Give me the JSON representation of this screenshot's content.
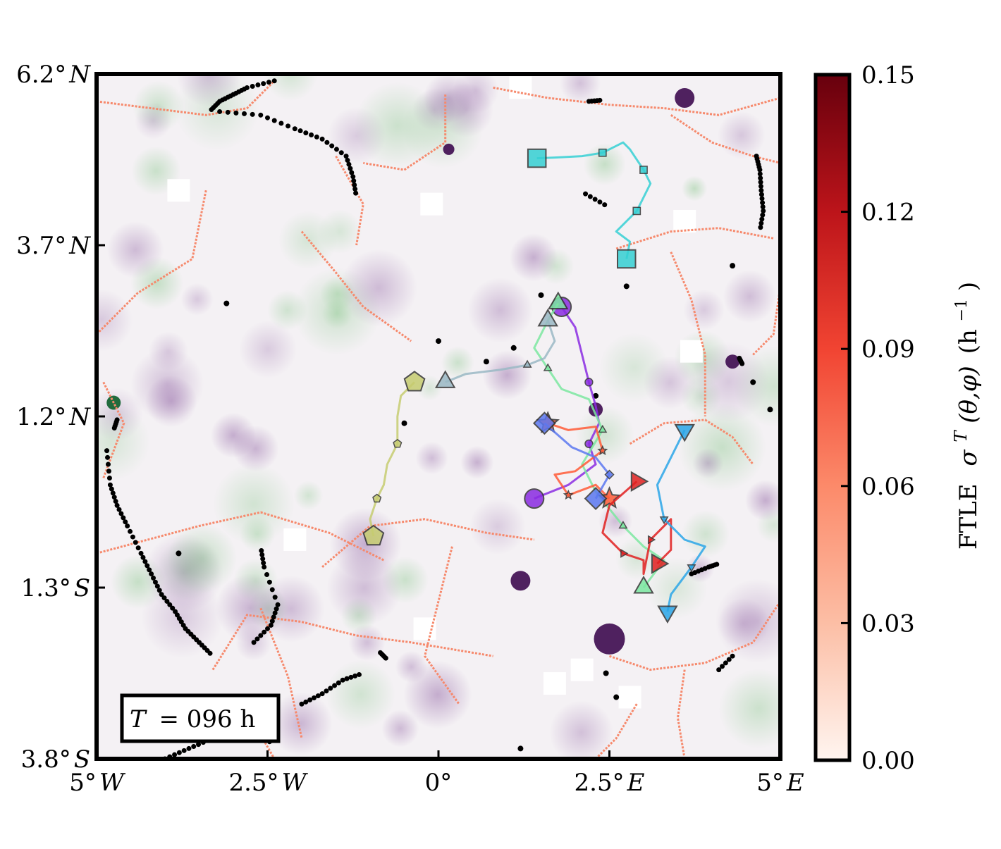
{
  "chart_data": {
    "type": "heatmap",
    "x_axis": {
      "range": [
        -5,
        5
      ],
      "units": "degrees longitude",
      "ticks": [
        {
          "value": -5,
          "num": "5°",
          "hem": "W"
        },
        {
          "value": -2.5,
          "num": "2.5°",
          "hem": "W"
        },
        {
          "value": 0,
          "num": "0°",
          "hem": ""
        },
        {
          "value": 2.5,
          "num": "2.5°",
          "hem": "E"
        },
        {
          "value": 5,
          "num": "5°",
          "hem": "E"
        }
      ]
    },
    "y_axis": {
      "range": [
        -3.8,
        6.2
      ],
      "units": "degrees latitude",
      "ticks": [
        {
          "value": 6.2,
          "num": "6.2°",
          "hem": "N"
        },
        {
          "value": 3.7,
          "num": "3.7°",
          "hem": "N"
        },
        {
          "value": 1.2,
          "num": "1.2°",
          "hem": "N"
        },
        {
          "value": -1.3,
          "num": "1.3°",
          "hem": "S"
        },
        {
          "value": -3.8,
          "num": "3.8°",
          "hem": "S"
        }
      ]
    },
    "colorbar": {
      "label_prefix": "FTLE",
      "label_symbol": "σ",
      "label_sup": "T",
      "label_args": "(θ,φ)",
      "label_units": "(h",
      "label_units_sup": "−1",
      "label_units_close": ")",
      "range": [
        0,
        0.15
      ],
      "ticks": [
        "0.15",
        "0.12",
        "0.09",
        "0.06",
        "0.03",
        "0.00"
      ],
      "colormap": "Reds"
    },
    "time_label": {
      "symbol": "T",
      "value": "= 096 h"
    },
    "background_field": "divergence (purple negative, green positive)",
    "drifter_tracks": [
      {
        "color": "#35d0d3",
        "marker": "square",
        "points": [
          [
            1.44,
            4.97
          ],
          [
            1.7,
            4.98
          ],
          [
            2.1,
            5.0
          ],
          [
            2.4,
            5.05
          ],
          [
            2.7,
            5.2
          ],
          [
            2.8,
            5.1
          ],
          [
            3.0,
            4.8
          ],
          [
            3.1,
            4.6
          ],
          [
            3.0,
            4.4
          ],
          [
            2.9,
            4.2
          ],
          [
            2.6,
            3.9
          ],
          [
            2.8,
            3.75
          ],
          [
            2.75,
            3.5
          ]
        ]
      },
      {
        "color": "#8a2be2",
        "marker": "circle",
        "points": [
          [
            1.8,
            2.8
          ],
          [
            2.0,
            2.5
          ],
          [
            2.1,
            2.1
          ],
          [
            2.2,
            1.7
          ],
          [
            2.3,
            1.35
          ],
          [
            2.35,
            1.1
          ],
          [
            2.2,
            0.8
          ],
          [
            2.3,
            0.5
          ],
          [
            1.9,
            0.2
          ],
          [
            1.4,
            0.0
          ]
        ]
      },
      {
        "color": "#7be7a0",
        "marker": "triangle-up",
        "points": [
          [
            1.75,
            2.85
          ],
          [
            1.6,
            2.6
          ],
          [
            1.4,
            2.2
          ],
          [
            1.6,
            1.9
          ],
          [
            1.8,
            1.6
          ],
          [
            2.2,
            1.45
          ],
          [
            2.4,
            1.0
          ],
          [
            2.1,
            0.5
          ],
          [
            2.3,
            0.1
          ],
          [
            2.7,
            -0.4
          ],
          [
            3.0,
            -0.7
          ],
          [
            3.3,
            -0.9
          ],
          [
            3.0,
            -1.3
          ]
        ]
      },
      {
        "color": "#ff5a36",
        "marker": "star",
        "points": [
          [
            1.6,
            1.1
          ],
          [
            1.9,
            1.0
          ],
          [
            2.3,
            1.05
          ],
          [
            2.4,
            0.7
          ],
          [
            2.0,
            0.4
          ],
          [
            1.7,
            0.35
          ],
          [
            1.9,
            0.05
          ],
          [
            2.3,
            0.2
          ],
          [
            2.5,
            0.0
          ]
        ]
      },
      {
        "color": "#e02020",
        "marker": "triangle-right",
        "points": [
          [
            2.9,
            0.25
          ],
          [
            2.5,
            -0.1
          ],
          [
            2.4,
            -0.5
          ],
          [
            2.7,
            -0.8
          ],
          [
            3.0,
            -0.9
          ],
          [
            3.0,
            -1.1
          ],
          [
            3.1,
            -0.6
          ],
          [
            3.4,
            -0.3
          ],
          [
            3.4,
            -0.75
          ],
          [
            3.2,
            -0.95
          ]
        ]
      },
      {
        "color": "#2aa6e8",
        "marker": "triangle-down",
        "points": [
          [
            3.6,
            1.0
          ],
          [
            3.4,
            0.6
          ],
          [
            3.2,
            0.2
          ],
          [
            3.3,
            -0.3
          ],
          [
            3.6,
            -0.6
          ],
          [
            3.9,
            -0.7
          ],
          [
            3.7,
            -1.0
          ],
          [
            3.4,
            -1.4
          ],
          [
            3.35,
            -1.65
          ]
        ]
      },
      {
        "color": "#c6cc70",
        "marker": "pentagon",
        "points": [
          [
            -0.35,
            1.7
          ],
          [
            -0.55,
            1.5
          ],
          [
            -0.6,
            1.2
          ],
          [
            -0.6,
            0.8
          ],
          [
            -0.75,
            0.5
          ],
          [
            -0.8,
            0.2
          ],
          [
            -0.9,
            0.0
          ],
          [
            -1.0,
            -0.3
          ],
          [
            -0.95,
            -0.55
          ]
        ]
      },
      {
        "color": "#9ab8c4",
        "marker": "triangle-up",
        "points": [
          [
            0.1,
            1.7
          ],
          [
            0.4,
            1.82
          ],
          [
            0.9,
            1.88
          ],
          [
            1.3,
            1.95
          ],
          [
            1.55,
            2.05
          ],
          [
            1.7,
            2.3
          ],
          [
            1.6,
            2.6
          ]
        ]
      },
      {
        "color": "#5b78f0",
        "marker": "diamond",
        "points": [
          [
            1.55,
            1.1
          ],
          [
            1.95,
            0.75
          ],
          [
            2.3,
            0.6
          ],
          [
            2.5,
            0.35
          ],
          [
            2.3,
            0.0
          ]
        ]
      }
    ]
  }
}
